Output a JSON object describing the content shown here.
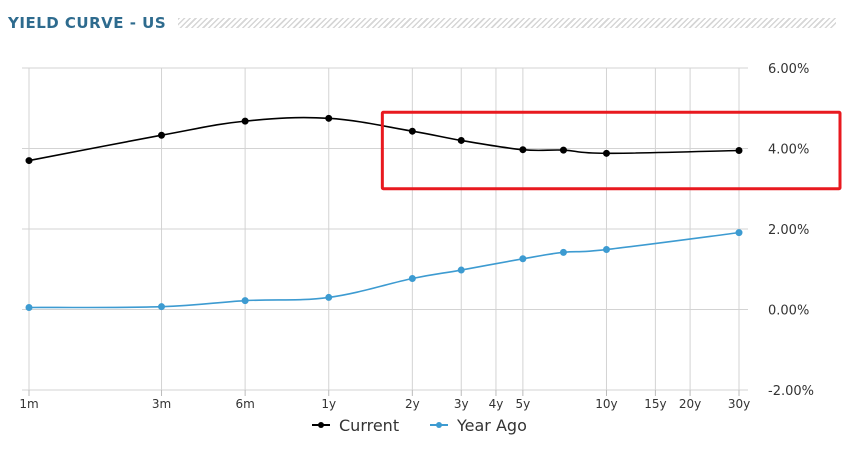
{
  "chart_data": {
    "type": "line",
    "title": "YIELD CURVE - US",
    "x": [
      "1m",
      "3m",
      "6m",
      "1y",
      "2y",
      "3y",
      "4y",
      "5y",
      "10y",
      "15y",
      "20y",
      "30y"
    ],
    "ylim": [
      -2,
      6
    ],
    "yticks": [
      -2,
      0,
      2,
      4,
      6
    ],
    "ytick_labels": [
      "-2.00%",
      "0.00%",
      "2.00%",
      "4.00%",
      "6.00%"
    ],
    "grid": true,
    "legend_position": "bottom-center",
    "series": [
      {
        "name": "Current",
        "color": "#000000",
        "points": [
          {
            "x": "1m",
            "y": 3.7
          },
          {
            "x": "3m",
            "y": 4.33
          },
          {
            "x": "6m",
            "y": 4.68
          },
          {
            "x": "1y",
            "y": 4.75
          },
          {
            "x": "2y",
            "y": 4.43
          },
          {
            "x": "3y",
            "y": 4.2
          },
          {
            "x": "5y",
            "y": 3.97
          },
          {
            "x": "7y",
            "y": 3.96
          },
          {
            "x": "10y",
            "y": 3.88
          },
          {
            "x": "30y",
            "y": 3.95
          }
        ]
      },
      {
        "name": "Year Ago",
        "color": "#3d9bd1",
        "points": [
          {
            "x": "1m",
            "y": 0.05
          },
          {
            "x": "3m",
            "y": 0.07
          },
          {
            "x": "6m",
            "y": 0.22
          },
          {
            "x": "1y",
            "y": 0.3
          },
          {
            "x": "2y",
            "y": 0.77
          },
          {
            "x": "3y",
            "y": 0.98
          },
          {
            "x": "5y",
            "y": 1.26
          },
          {
            "x": "7y",
            "y": 1.42
          },
          {
            "x": "10y",
            "y": 1.49
          },
          {
            "x": "30y",
            "y": 1.91
          }
        ]
      }
    ],
    "highlight_box": {
      "x_from": "2y",
      "x_to": "30y",
      "y_from": 3.0,
      "y_to": 4.9,
      "color": "#e8191f"
    }
  }
}
